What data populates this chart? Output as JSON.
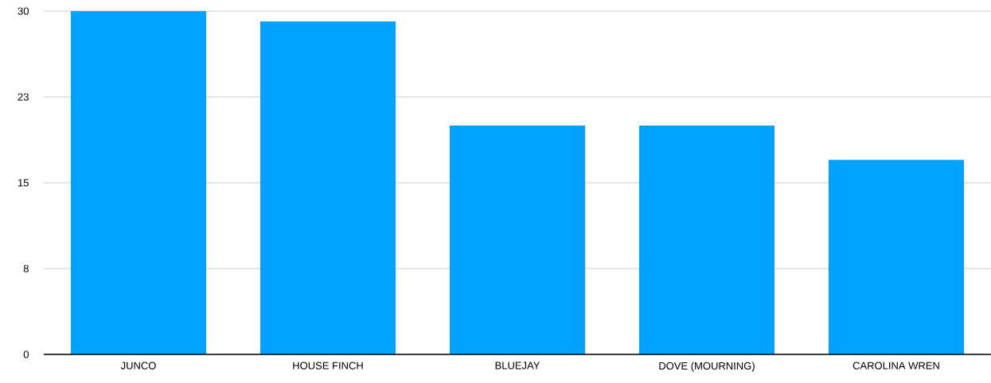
{
  "chart_data": {
    "type": "bar",
    "categories": [
      "JUNCO",
      "HOUSE FINCH",
      "BLUEJAY",
      "DOVE (MOURNING)",
      "CAROLINA WREN"
    ],
    "values": [
      30,
      29.1,
      20,
      20,
      17
    ],
    "color": "#00a2ff",
    "ylim": [
      0,
      30
    ],
    "yticks": [
      0,
      {
        "value": 7.5,
        "label": "8"
      },
      15,
      {
        "value": 22.5,
        "label": "23"
      },
      30
    ],
    "grid": "y"
  }
}
